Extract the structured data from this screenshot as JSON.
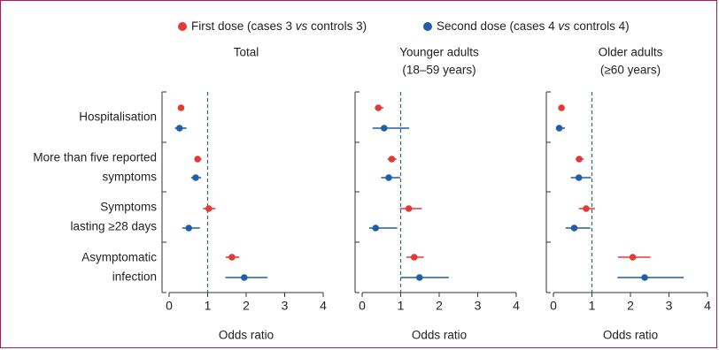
{
  "legend": {
    "items": [
      {
        "label": "First dose (cases 3 vs controls 3)",
        "prefix": "First dose (cases 3 ",
        "italic": "vs",
        "suffix": " controls 3)",
        "color": "#e53935"
      },
      {
        "label": "Second dose (cases 4 vs controls 4)",
        "prefix": "Second dose (cases 4 ",
        "italic": "vs",
        "suffix": " controls 4)",
        "color": "#1f5fa8"
      }
    ]
  },
  "row_labels": [
    [
      "Hospitalisation"
    ],
    [
      "More than five reported",
      "symptoms"
    ],
    [
      "Symptoms",
      "lasting ≥28 days"
    ],
    [
      "Asymptomatic",
      "infection"
    ]
  ],
  "chart_data": [
    {
      "type": "scatter",
      "title": "Total",
      "xlabel": "Odds ratio",
      "xlim": [
        0,
        4
      ],
      "xticks": [
        "0",
        "1",
        "2",
        "3",
        "4"
      ],
      "reference_line": 1,
      "categories": [
        "Hospitalisation",
        "More than five reported symptoms",
        "Symptoms lasting ≥28 days",
        "Asymptomatic infection"
      ],
      "series": [
        {
          "name": "First dose",
          "color": "#e53935",
          "values": [
            0.31,
            0.74,
            1.03,
            1.63
          ],
          "lower": [
            0.27,
            0.66,
            0.88,
            1.47
          ],
          "upper": [
            0.36,
            0.84,
            1.2,
            1.82
          ]
        },
        {
          "name": "Second dose",
          "color": "#1f5fa8",
          "values": [
            0.27,
            0.69,
            0.51,
            1.95
          ],
          "lower": [
            0.15,
            0.57,
            0.34,
            1.46
          ],
          "upper": [
            0.45,
            0.83,
            0.8,
            2.55
          ]
        }
      ]
    },
    {
      "type": "scatter",
      "title": "Younger adults\n(18–59 years)",
      "xlabel": "Odds ratio",
      "xlim": [
        0,
        4
      ],
      "xticks": [
        "0",
        "1",
        "2",
        "3",
        "4"
      ],
      "reference_line": 1,
      "categories": [
        "Hospitalisation",
        "More than five reported symptoms",
        "Symptoms lasting ≥28 days",
        "Asymptomatic infection"
      ],
      "series": [
        {
          "name": "First dose",
          "color": "#e53935",
          "values": [
            0.42,
            0.77,
            1.21,
            1.35
          ],
          "lower": [
            0.33,
            0.66,
            0.98,
            1.15
          ],
          "upper": [
            0.55,
            0.89,
            1.55,
            1.6
          ]
        },
        {
          "name": "Second dose",
          "color": "#1f5fa8",
          "values": [
            0.57,
            0.69,
            0.35,
            1.49
          ],
          "lower": [
            0.27,
            0.49,
            0.18,
            1.0
          ],
          "upper": [
            1.22,
            0.99,
            0.91,
            2.25
          ]
        }
      ]
    },
    {
      "type": "scatter",
      "title": "Older adults\n(≥60 years)",
      "xlabel": "Odds ratio",
      "xlim": [
        0,
        4
      ],
      "xticks": [
        "0",
        "1",
        "2",
        "3",
        "4"
      ],
      "reference_line": 1,
      "categories": [
        "Hospitalisation",
        "More than five reported symptoms",
        "Symptoms lasting ≥28 days",
        "Asymptomatic infection"
      ],
      "series": [
        {
          "name": "First dose",
          "color": "#e53935",
          "values": [
            0.21,
            0.67,
            0.85,
            2.06
          ],
          "lower": [
            0.16,
            0.58,
            0.66,
            1.68
          ],
          "upper": [
            0.27,
            0.78,
            1.08,
            2.52
          ]
        },
        {
          "name": "Second dose",
          "color": "#1f5fa8",
          "values": [
            0.15,
            0.66,
            0.54,
            2.37
          ],
          "lower": [
            0.08,
            0.45,
            0.32,
            1.66
          ],
          "upper": [
            0.3,
            0.98,
            0.96,
            3.38
          ]
        }
      ]
    }
  ]
}
